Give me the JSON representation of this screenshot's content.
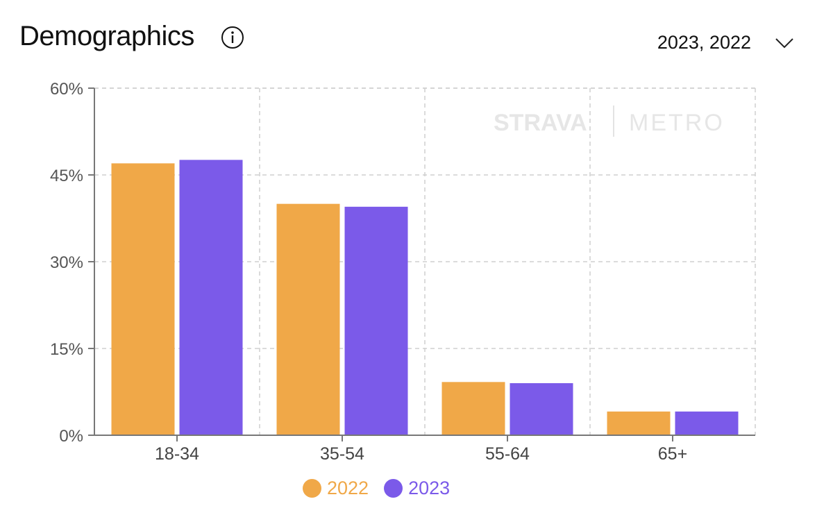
{
  "header": {
    "title": "Demographics",
    "info_icon": "info-circle-icon"
  },
  "filter": {
    "label": "2023, 2022",
    "icon": "chevron-down-icon"
  },
  "watermark": {
    "brand": "STRAVA",
    "product": "METRO"
  },
  "colors": {
    "series_2022": "#F0A848",
    "series_2023": "#7B5AE9",
    "grid": "#cfcfcf",
    "axis": "#777777"
  },
  "chart_data": {
    "type": "bar",
    "categories": [
      "18-34",
      "35-54",
      "55-64",
      "65+"
    ],
    "series": [
      {
        "name": "2022",
        "values": [
          47,
          40,
          9.2,
          4.1
        ]
      },
      {
        "name": "2023",
        "values": [
          47.6,
          39.5,
          9,
          4.1
        ]
      }
    ],
    "ylim": [
      0,
      60
    ],
    "yticks": [
      "0%",
      "15%",
      "30%",
      "45%",
      "60%"
    ],
    "ytick_values": [
      0,
      15,
      30,
      45,
      60
    ],
    "grid": true,
    "legend": "bottom-center"
  }
}
